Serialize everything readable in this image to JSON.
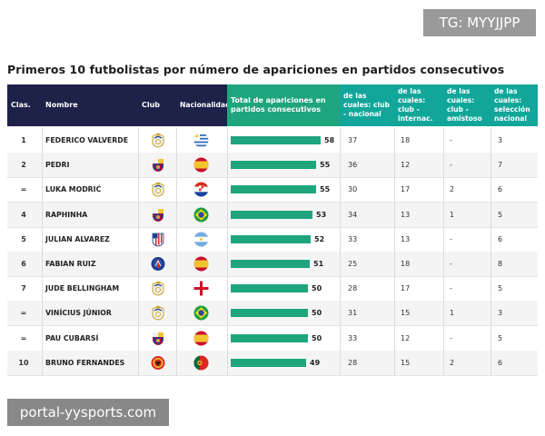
{
  "watermark_top": "TG: MYYJJPP",
  "watermark_bottom": "portal-yysports.com",
  "chart_data": {
    "type": "table",
    "title": "Primeros 10 futbolistas por número de apariciones en partidos consecutivos",
    "headers": {
      "rank": "Clas.",
      "name": "Nombre",
      "club": "Club",
      "nationality": "Nacionalidad",
      "total": "Total de apariciones en partidos consecutivos",
      "club_nacional": "de las cuales: club - nacional",
      "club_internac": "de las cuales: club - internac.",
      "club_amistoso": "de las cuales: club - amistoso",
      "seleccion": "de las cuales: selección nacional"
    },
    "bar_max": 60,
    "rows": [
      {
        "rank": "1",
        "name": "FEDERICO VALVERDE",
        "club": "real-madrid",
        "nat": "uruguay",
        "total": 58,
        "total_label": "58",
        "nacional": "37",
        "internac": "18",
        "amistoso": "-",
        "seleccion": "3"
      },
      {
        "rank": "2",
        "name": "PEDRI",
        "club": "barcelona",
        "nat": "spain",
        "total": 55,
        "total_label": "55",
        "nacional": "36",
        "internac": "12",
        "amistoso": "-",
        "seleccion": "7"
      },
      {
        "rank": "=",
        "name": "LUKA MODRIĆ",
        "club": "real-madrid",
        "nat": "croatia",
        "total": 55,
        "total_label": "55",
        "nacional": "30",
        "internac": "17",
        "amistoso": "2",
        "seleccion": "6"
      },
      {
        "rank": "4",
        "name": "RAPHINHA",
        "club": "barcelona",
        "nat": "brazil",
        "total": 53,
        "total_label": "53",
        "nacional": "34",
        "internac": "13",
        "amistoso": "1",
        "seleccion": "5"
      },
      {
        "rank": "5",
        "name": "JULIAN ALVAREZ",
        "club": "atletico",
        "nat": "argentina",
        "total": 52,
        "total_label": "52",
        "nacional": "33",
        "internac": "13",
        "amistoso": "-",
        "seleccion": "6"
      },
      {
        "rank": "6",
        "name": "FABIAN RUIZ",
        "club": "psg",
        "nat": "spain",
        "total": 51,
        "total_label": "51",
        "nacional": "25",
        "internac": "18",
        "amistoso": "-",
        "seleccion": "8"
      },
      {
        "rank": "7",
        "name": "JUDE BELLINGHAM",
        "club": "real-madrid",
        "nat": "england",
        "total": 50,
        "total_label": "50",
        "nacional": "28",
        "internac": "17",
        "amistoso": "-",
        "seleccion": "5"
      },
      {
        "rank": "=",
        "name": "VINÍCIUS JÚNIOR",
        "club": "real-madrid",
        "nat": "brazil",
        "total": 50,
        "total_label": "50",
        "nacional": "31",
        "internac": "15",
        "amistoso": "1",
        "seleccion": "3"
      },
      {
        "rank": "=",
        "name": "PAU CUBARSÍ",
        "club": "barcelona",
        "nat": "spain",
        "total": 50,
        "total_label": "50",
        "nacional": "33",
        "internac": "12",
        "amistoso": "-",
        "seleccion": "5"
      },
      {
        "rank": "10",
        "name": "BRUNO FERNANDES",
        "club": "man-united",
        "nat": "portugal",
        "total": 49,
        "total_label": "49",
        "nacional": "28",
        "internac": "15",
        "amistoso": "2",
        "seleccion": "6"
      }
    ]
  }
}
